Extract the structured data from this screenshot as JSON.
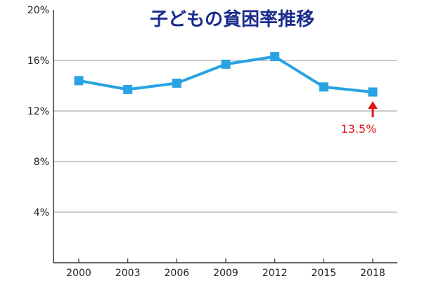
{
  "chart_data": {
    "type": "line",
    "title": "子どもの貧困率推移",
    "xlabel": "",
    "ylabel": "",
    "x": [
      "2000",
      "2003",
      "2006",
      "2009",
      "2012",
      "2015",
      "2018"
    ],
    "series": [
      {
        "values": [
          14.4,
          13.7,
          14.2,
          15.7,
          16.3,
          13.9,
          13.5
        ]
      }
    ],
    "ylim": [
      0,
      20
    ],
    "y_ticks": [
      {
        "value": 4,
        "label": "4%"
      },
      {
        "value": 8,
        "label": "8%"
      },
      {
        "value": 12,
        "label": "12%"
      },
      {
        "value": 16,
        "label": "16%"
      },
      {
        "value": 20,
        "label": "20%"
      }
    ],
    "grid": true,
    "legend": "none",
    "annotation": {
      "x": "2018",
      "value": 13.5,
      "text": "13.5%"
    },
    "colors": {
      "line": "#29a3e3",
      "marker": "#29a3e3",
      "title": "#1a2b8c",
      "annotation": "#e0141e",
      "grid": "#999999",
      "axis": "#333333"
    }
  }
}
